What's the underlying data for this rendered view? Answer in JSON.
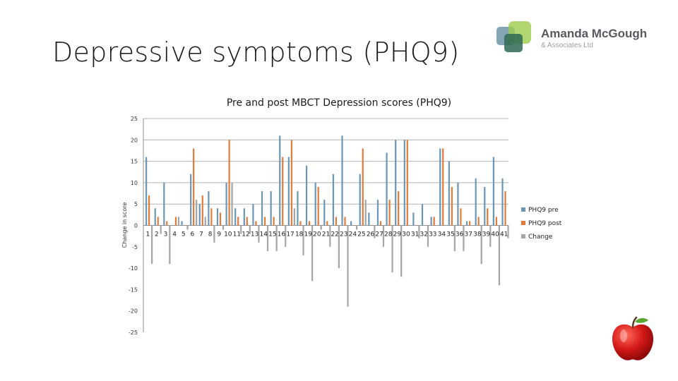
{
  "slide": {
    "title": "Depressive symptoms (PHQ9)"
  },
  "logo": {
    "name": "Amanda McGough",
    "subtitle": "& Associates Ltd",
    "icon": "overlapping-squares-logo"
  },
  "decoration": {
    "icon": "red-apple-icon"
  },
  "colors": {
    "pre": "#6b97b6",
    "post": "#e07b39",
    "change": "#a5a5a5",
    "grid": "#b3b3b3",
    "axis": "#8c8c8c"
  },
  "chart_data": {
    "type": "bar",
    "title": "Pre and post MBCT Depression scores (PHQ9)",
    "xlabel": "",
    "ylabel": "Change in score",
    "ylim": [
      -25,
      25
    ],
    "yticks": [
      25,
      20,
      15,
      10,
      5,
      0,
      -5,
      -10,
      -15,
      -20,
      -25
    ],
    "grid": true,
    "legend_position": "right",
    "categories": [
      "1",
      "2",
      "3",
      "4",
      "5",
      "6",
      "7",
      "8",
      "9",
      "10",
      "11",
      "12",
      "13",
      "14",
      "15",
      "16",
      "17",
      "18",
      "19",
      "20",
      "21",
      "22",
      "23",
      "24",
      "25",
      "26",
      "27",
      "28",
      "29",
      "30",
      "31",
      "32",
      "33",
      "34",
      "35",
      "36",
      "37",
      "38",
      "39",
      "40",
      "41"
    ],
    "series": [
      {
        "name": "PHQ9 pre",
        "values": [
          16,
          4,
          10,
          0,
          1,
          12,
          5,
          8,
          4,
          10,
          4,
          4,
          5,
          8,
          8,
          21,
          16,
          8,
          14,
          10,
          6,
          12,
          21,
          1,
          12,
          3,
          6,
          17,
          20,
          20,
          3,
          5,
          2,
          18,
          15,
          10,
          1,
          11,
          9,
          16,
          11
        ]
      },
      {
        "name": "PHQ9 post",
        "values": [
          7,
          2,
          1,
          2,
          0,
          18,
          7,
          4,
          3,
          20,
          2,
          2,
          1,
          2,
          2,
          16,
          20,
          1,
          1,
          9,
          1,
          2,
          2,
          0,
          18,
          0,
          1,
          6,
          8,
          20,
          0,
          0,
          2,
          18,
          9,
          4,
          1,
          2,
          4,
          2,
          8
        ]
      },
      {
        "name": "Change",
        "values": [
          -9,
          -2,
          -9,
          2,
          -1,
          6,
          2,
          -4,
          -1,
          10,
          -2,
          -2,
          -4,
          -6,
          -6,
          -5,
          4,
          -7,
          -13,
          -1,
          -5,
          -10,
          -19,
          -1,
          6,
          -3,
          -5,
          -11,
          -12,
          0,
          -3,
          -5,
          0,
          0,
          -6,
          -6,
          0,
          -9,
          -5,
          -14,
          -3
        ]
      }
    ]
  }
}
